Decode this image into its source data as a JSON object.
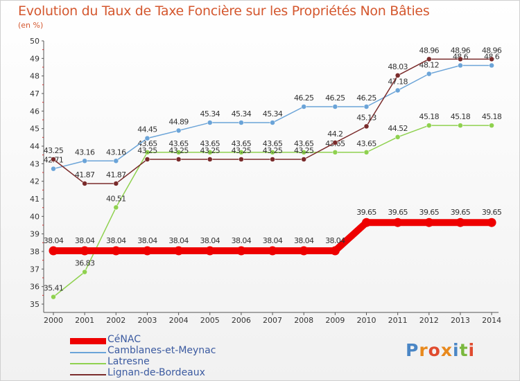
{
  "title": "Evolution du Taux de Taxe Foncière sur les Propriétés Non Bâties",
  "unit": "(en %)",
  "logo": [
    "P",
    "r",
    "o",
    "x",
    "i",
    "t",
    "i"
  ],
  "logo_colors": [
    "#4a86c5",
    "#e8891d",
    "#e04b2f",
    "#e8891d",
    "#4a86c5",
    "#7ab83e",
    "#e04b2f"
  ],
  "chart_data": {
    "type": "line",
    "title": "Evolution du Taux de Taxe Foncière sur les Propriétés Non Bâties",
    "ylabel": "(en %)",
    "xlabel": "",
    "categories": [
      "2000",
      "2001",
      "2002",
      "2003",
      "2004",
      "2005",
      "2006",
      "2007",
      "2008",
      "2009",
      "2010",
      "2011",
      "2012",
      "2013",
      "2014"
    ],
    "ylim": [
      35,
      50
    ],
    "yticks": [
      "35",
      "36",
      "37",
      "38",
      "39",
      "40",
      "41",
      "42",
      "43",
      "44",
      "45",
      "46",
      "47",
      "48",
      "49",
      "50"
    ],
    "series": [
      {
        "name": "Latresne",
        "color": "#8fd14f",
        "values": [
          35.41,
          36.83,
          40.51,
          43.65,
          43.65,
          43.65,
          43.65,
          43.65,
          43.65,
          43.65,
          43.65,
          44.52,
          45.18,
          45.18,
          45.18
        ],
        "labels": [
          "35.41",
          "36.83",
          "40.51",
          "43.65",
          "43.65",
          "43.65",
          "43.65",
          "43.65",
          "43.65",
          "43.65",
          "43.65",
          "44.52",
          "45.18",
          "45.18",
          "45.18"
        ]
      },
      {
        "name": "Camblanes-et-Meynac",
        "color": "#6ba4d8",
        "values": [
          42.71,
          43.16,
          43.16,
          44.45,
          44.89,
          45.34,
          45.34,
          45.34,
          46.25,
          46.25,
          46.25,
          47.18,
          48.12,
          48.6,
          48.6
        ],
        "labels": [
          "42.71",
          "43.16",
          "43.16",
          "44.45",
          "44.89",
          "45.34",
          "45.34",
          "45.34",
          "46.25",
          "46.25",
          "46.25",
          "47.18",
          "48.12",
          "48.6",
          "48.6"
        ]
      },
      {
        "name": "Lignan-de-Bordeaux",
        "color": "#7a2b2b",
        "values": [
          43.25,
          41.87,
          41.87,
          43.25,
          43.25,
          43.25,
          43.25,
          43.25,
          43.25,
          44.2,
          45.13,
          48.03,
          48.96,
          48.96,
          48.96
        ],
        "labels": [
          "43.25",
          "41.87",
          "41.87",
          "43.25",
          "43.25",
          "43.25",
          "43.25",
          "43.25",
          "43.25",
          "44.2",
          "45.13",
          "48.03",
          "48.96",
          "48.96",
          "48.96"
        ]
      },
      {
        "name": "CéNAC",
        "color": "#ee0000",
        "values": [
          38.04,
          38.04,
          38.04,
          38.04,
          38.04,
          38.04,
          38.04,
          38.04,
          38.04,
          38.04,
          39.65,
          39.65,
          39.65,
          39.65,
          39.65
        ],
        "labels": [
          "38.04",
          "38.04",
          "38.04",
          "38.04",
          "38.04",
          "38.04",
          "38.04",
          "38.04",
          "38.04",
          "38.04",
          "39.65",
          "39.65",
          "39.65",
          "39.65",
          "39.65"
        ]
      }
    ],
    "legend": [
      "CéNAC",
      "Camblanes-et-Meynac",
      "Latresne",
      "Lignan-de-Bordeaux"
    ],
    "legend_position": "bottom-left",
    "grid": false
  }
}
